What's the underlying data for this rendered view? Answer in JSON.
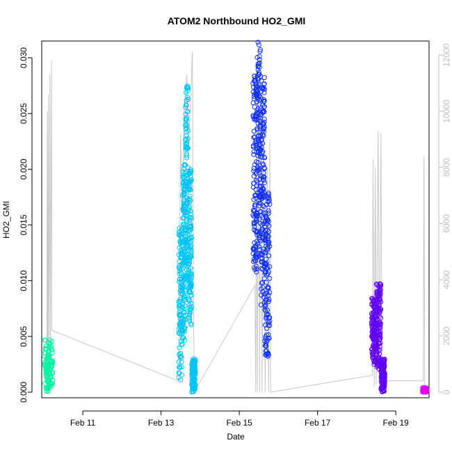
{
  "chart_data": {
    "type": "scatter",
    "title": "ATOM2 Northbound HO2_GMI",
    "xlabel": "Date",
    "ylabel": "HO2_GMI",
    "x_axis": {
      "unit": "days",
      "ticks": [
        {
          "value": 11,
          "label": "Feb 11"
        },
        {
          "value": 13,
          "label": "Feb 13"
        },
        {
          "value": 15,
          "label": "Feb 15"
        },
        {
          "value": 17,
          "label": "Feb 17"
        },
        {
          "value": 19,
          "label": "Feb 19"
        }
      ],
      "range": [
        9.95,
        19.85
      ]
    },
    "y_left": {
      "range": [
        -0.0005,
        0.0315
      ],
      "ticks": [
        0.0,
        0.005,
        0.01,
        0.015,
        0.02,
        0.025,
        0.03
      ],
      "tick_labels": [
        "0.000",
        "0.005",
        "0.010",
        "0.015",
        "0.020",
        "0.025",
        "0.030"
      ]
    },
    "y_right": {
      "range": [
        -200,
        12500
      ],
      "ticks": [
        0,
        2000,
        4000,
        6000,
        8000,
        10000,
        12000
      ],
      "tick_labels": [
        "0",
        "2000",
        "4000",
        "6000",
        "8000",
        "10000",
        "12000"
      ],
      "color": "#bdbdbd"
    },
    "altitude_track": {
      "color": "#c8c8c8",
      "points": [
        [
          10.08,
          0
        ],
        [
          10.09,
          10000
        ],
        [
          10.1,
          200
        ],
        [
          10.12,
          10600
        ],
        [
          10.13,
          300
        ],
        [
          10.16,
          11300
        ],
        [
          10.17,
          400
        ],
        [
          10.2,
          11800
        ],
        [
          10.21,
          2200
        ],
        [
          13.45,
          400
        ],
        [
          13.5,
          9200
        ],
        [
          13.55,
          6000
        ],
        [
          13.58,
          9900
        ],
        [
          13.62,
          10600
        ],
        [
          13.66,
          11300
        ],
        [
          13.7,
          8500
        ],
        [
          13.78,
          11300
        ],
        [
          13.8,
          12100
        ],
        [
          13.83,
          3000
        ],
        [
          13.85,
          0
        ],
        [
          15.4,
          3800
        ],
        [
          15.42,
          0
        ],
        [
          15.44,
          11600
        ],
        [
          15.46,
          0
        ],
        [
          15.5,
          10900
        ],
        [
          15.52,
          0
        ],
        [
          15.55,
          11200
        ],
        [
          15.58,
          0
        ],
        [
          15.62,
          10200
        ],
        [
          15.66,
          0
        ],
        [
          15.72,
          8000
        ],
        [
          15.75,
          0
        ],
        [
          15.78,
          9000
        ],
        [
          15.8,
          0
        ],
        [
          18.4,
          600
        ],
        [
          18.42,
          8300
        ],
        [
          18.45,
          200
        ],
        [
          18.48,
          8000
        ],
        [
          18.5,
          300
        ],
        [
          18.55,
          9300
        ],
        [
          18.58,
          500
        ],
        [
          18.62,
          9200
        ],
        [
          18.65,
          400
        ],
        [
          19.7,
          400
        ],
        [
          19.72,
          8400
        ],
        [
          19.74,
          100
        ]
      ]
    },
    "series": [
      {
        "color": "#00f5a0",
        "segments": [
          [
            10.02,
            10.23,
            0.0,
            0.0047
          ]
        ]
      },
      {
        "color": "#00c4f5",
        "segments": [
          [
            13.45,
            13.55,
            0.001,
            0.015
          ],
          [
            13.55,
            13.62,
            0.0045,
            0.0205
          ],
          [
            13.62,
            13.7,
            0.01,
            0.0275
          ],
          [
            13.7,
            13.78,
            0.006,
            0.02
          ],
          [
            13.78,
            13.88,
            0.0,
            0.003
          ]
        ]
      },
      {
        "color": "#1030f5",
        "segments": [
          [
            15.35,
            15.45,
            0.0105,
            0.0285
          ],
          [
            15.45,
            15.55,
            0.012,
            0.0315
          ],
          [
            15.55,
            15.65,
            0.007,
            0.0285
          ],
          [
            15.65,
            15.78,
            0.003,
            0.018
          ]
        ]
      },
      {
        "color": "#6000f5",
        "segments": [
          [
            18.38,
            18.5,
            0.0025,
            0.0085
          ],
          [
            18.5,
            18.62,
            0.002,
            0.0099
          ],
          [
            18.62,
            18.72,
            0.0,
            0.003
          ]
        ]
      },
      {
        "color": "#e000f5",
        "segments": [
          [
            19.68,
            19.8,
            0.0,
            0.0004
          ]
        ]
      }
    ]
  }
}
